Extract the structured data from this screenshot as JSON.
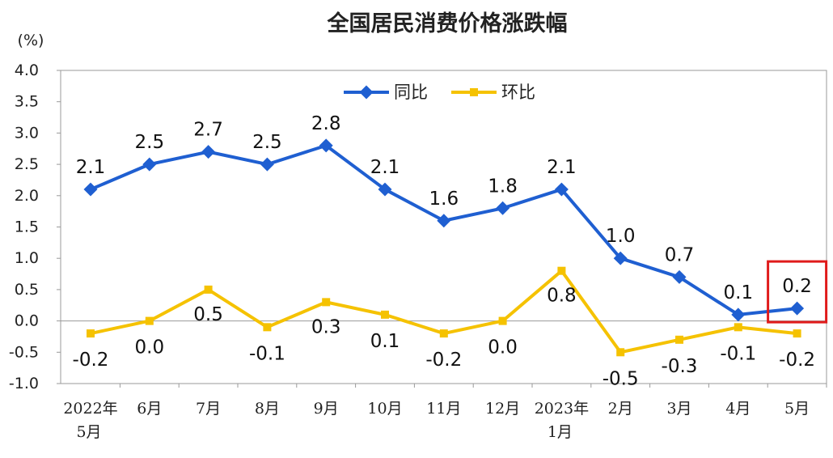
{
  "chart_data": {
    "type": "line",
    "title": "全国居民消费价格涨跌幅",
    "ylabel": "(%)",
    "ylim": [
      -1.0,
      4.0
    ],
    "yticks": [
      "4.0",
      "3.5",
      "3.0",
      "2.5",
      "2.0",
      "1.5",
      "1.0",
      "0.5",
      "0.0",
      "-0.5",
      "-1.0"
    ],
    "ytick_values": [
      4.0,
      3.5,
      3.0,
      2.5,
      2.0,
      1.5,
      1.0,
      0.5,
      0.0,
      -0.5,
      -1.0
    ],
    "categories": [
      [
        "2022年",
        "5月"
      ],
      [
        "6月"
      ],
      [
        "7月"
      ],
      [
        "8月"
      ],
      [
        "9月"
      ],
      [
        "10月"
      ],
      [
        "11月"
      ],
      [
        "12月"
      ],
      [
        "2023年",
        "1月"
      ],
      [
        "2月"
      ],
      [
        "3月"
      ],
      [
        "4月"
      ],
      [
        "5月"
      ]
    ],
    "legend_position": "top",
    "grid": false,
    "series": [
      {
        "name": "同比",
        "color": "#1f5fd1",
        "values": [
          2.1,
          2.5,
          2.7,
          2.5,
          2.8,
          2.1,
          1.6,
          1.8,
          2.1,
          1.0,
          0.7,
          0.1,
          0.2
        ],
        "labels": [
          "2.1",
          "2.5",
          "2.7",
          "2.5",
          "2.8",
          "2.1",
          "1.6",
          "1.8",
          "2.1",
          "1.0",
          "0.7",
          "0.1",
          "0.2"
        ]
      },
      {
        "name": "环比",
        "color": "#f5c200",
        "values": [
          -0.2,
          0.0,
          0.5,
          -0.1,
          0.3,
          0.1,
          -0.2,
          0.0,
          0.8,
          -0.5,
          -0.3,
          -0.1,
          -0.2
        ],
        "labels": [
          "-0.2",
          "0.0",
          "0.5",
          "-0.1",
          "0.3",
          "0.1",
          "-0.2",
          "0.0",
          "0.8",
          "-0.5",
          "-0.3",
          "-0.1",
          "-0.2"
        ]
      }
    ],
    "highlight": {
      "series": 0,
      "index": 12,
      "color": "#e01b1b"
    }
  }
}
